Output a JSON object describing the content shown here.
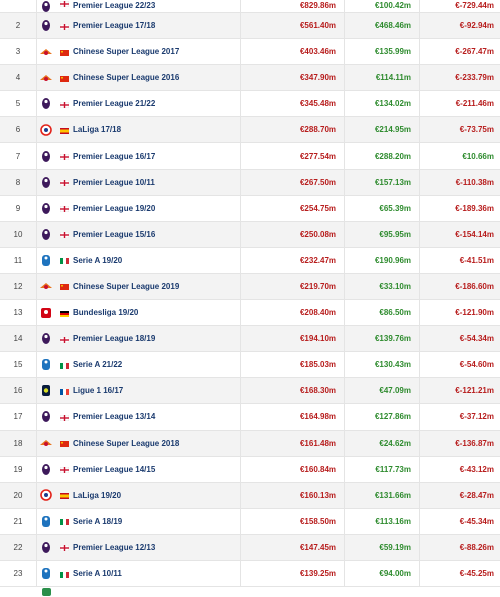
{
  "colors": {
    "expense": "#b71c1c",
    "income": "#2e8b2e",
    "competition_link": "#1a3a6e",
    "row_alt": "#f3f3f3"
  },
  "rows": [
    {
      "rank": "",
      "flag": "england",
      "logo": "premier-league-logo",
      "competition": "Premier League 22/23",
      "expenditure": "€829.86m",
      "income": "€100.42m",
      "balance": "€-729.44m"
    },
    {
      "rank": "2",
      "flag": "england",
      "logo": "premier-league-logo",
      "competition": "Premier League 17/18",
      "expenditure": "€561.40m",
      "income": "€468.46m",
      "balance": "€-92.94m"
    },
    {
      "rank": "3",
      "flag": "china",
      "logo": "chinese-super-league-logo",
      "competition": "Chinese Super League 2017",
      "expenditure": "€403.46m",
      "income": "€135.99m",
      "balance": "€-267.47m"
    },
    {
      "rank": "4",
      "flag": "china",
      "logo": "chinese-super-league-logo",
      "competition": "Chinese Super League 2016",
      "expenditure": "€347.90m",
      "income": "€114.11m",
      "balance": "€-233.79m"
    },
    {
      "rank": "5",
      "flag": "england",
      "logo": "premier-league-logo",
      "competition": "Premier League 21/22",
      "expenditure": "€345.48m",
      "income": "€134.02m",
      "balance": "€-211.46m"
    },
    {
      "rank": "6",
      "flag": "spain",
      "logo": "laliga-logo",
      "competition": "LaLiga 17/18",
      "expenditure": "€288.70m",
      "income": "€214.95m",
      "balance": "€-73.75m"
    },
    {
      "rank": "7",
      "flag": "england",
      "logo": "premier-league-logo",
      "competition": "Premier League 16/17",
      "expenditure": "€277.54m",
      "income": "€288.20m",
      "balance": "€10.66m"
    },
    {
      "rank": "8",
      "flag": "england",
      "logo": "premier-league-logo",
      "competition": "Premier League 10/11",
      "expenditure": "€267.50m",
      "income": "€157.13m",
      "balance": "€-110.38m"
    },
    {
      "rank": "9",
      "flag": "england",
      "logo": "premier-league-logo",
      "competition": "Premier League 19/20",
      "expenditure": "€254.75m",
      "income": "€65.39m",
      "balance": "€-189.36m"
    },
    {
      "rank": "10",
      "flag": "england",
      "logo": "premier-league-logo",
      "competition": "Premier League 15/16",
      "expenditure": "€250.08m",
      "income": "€95.95m",
      "balance": "€-154.14m"
    },
    {
      "rank": "11",
      "flag": "italy",
      "logo": "serie-a-logo",
      "competition": "Serie A 19/20",
      "expenditure": "€232.47m",
      "income": "€190.96m",
      "balance": "€-41.51m"
    },
    {
      "rank": "12",
      "flag": "china",
      "logo": "chinese-super-league-logo",
      "competition": "Chinese Super League 2019",
      "expenditure": "€219.70m",
      "income": "€33.10m",
      "balance": "€-186.60m"
    },
    {
      "rank": "13",
      "flag": "germany",
      "logo": "bundesliga-logo",
      "competition": "Bundesliga 19/20",
      "expenditure": "€208.40m",
      "income": "€86.50m",
      "balance": "€-121.90m"
    },
    {
      "rank": "14",
      "flag": "england",
      "logo": "premier-league-logo",
      "competition": "Premier League 18/19",
      "expenditure": "€194.10m",
      "income": "€139.76m",
      "balance": "€-54.34m"
    },
    {
      "rank": "15",
      "flag": "italy",
      "logo": "serie-a-logo",
      "competition": "Serie A 21/22",
      "expenditure": "€185.03m",
      "income": "€130.43m",
      "balance": "€-54.60m"
    },
    {
      "rank": "16",
      "flag": "france",
      "logo": "ligue-1-logo",
      "competition": "Ligue 1 16/17",
      "expenditure": "€168.30m",
      "income": "€47.09m",
      "balance": "€-121.21m"
    },
    {
      "rank": "17",
      "flag": "england",
      "logo": "premier-league-logo",
      "competition": "Premier League 13/14",
      "expenditure": "€164.98m",
      "income": "€127.86m",
      "balance": "€-37.12m"
    },
    {
      "rank": "18",
      "flag": "china",
      "logo": "chinese-super-league-logo",
      "competition": "Chinese Super League 2018",
      "expenditure": "€161.48m",
      "income": "€24.62m",
      "balance": "€-136.87m"
    },
    {
      "rank": "19",
      "flag": "england",
      "logo": "premier-league-logo",
      "competition": "Premier League 14/15",
      "expenditure": "€160.84m",
      "income": "€117.73m",
      "balance": "€-43.12m"
    },
    {
      "rank": "20",
      "flag": "spain",
      "logo": "laliga-logo",
      "competition": "LaLiga 19/20",
      "expenditure": "€160.13m",
      "income": "€131.66m",
      "balance": "€-28.47m"
    },
    {
      "rank": "21",
      "flag": "italy",
      "logo": "serie-a-logo",
      "competition": "Serie A 18/19",
      "expenditure": "€158.50m",
      "income": "€113.16m",
      "balance": "€-45.34m"
    },
    {
      "rank": "22",
      "flag": "england",
      "logo": "premier-league-logo",
      "competition": "Premier League 12/13",
      "expenditure": "€147.45m",
      "income": "€59.19m",
      "balance": "€-88.26m"
    },
    {
      "rank": "23",
      "flag": "italy",
      "logo": "serie-a-logo",
      "competition": "Serie A 10/11",
      "expenditure": "€139.25m",
      "income": "€94.00m",
      "balance": "€-45.25m"
    }
  ]
}
